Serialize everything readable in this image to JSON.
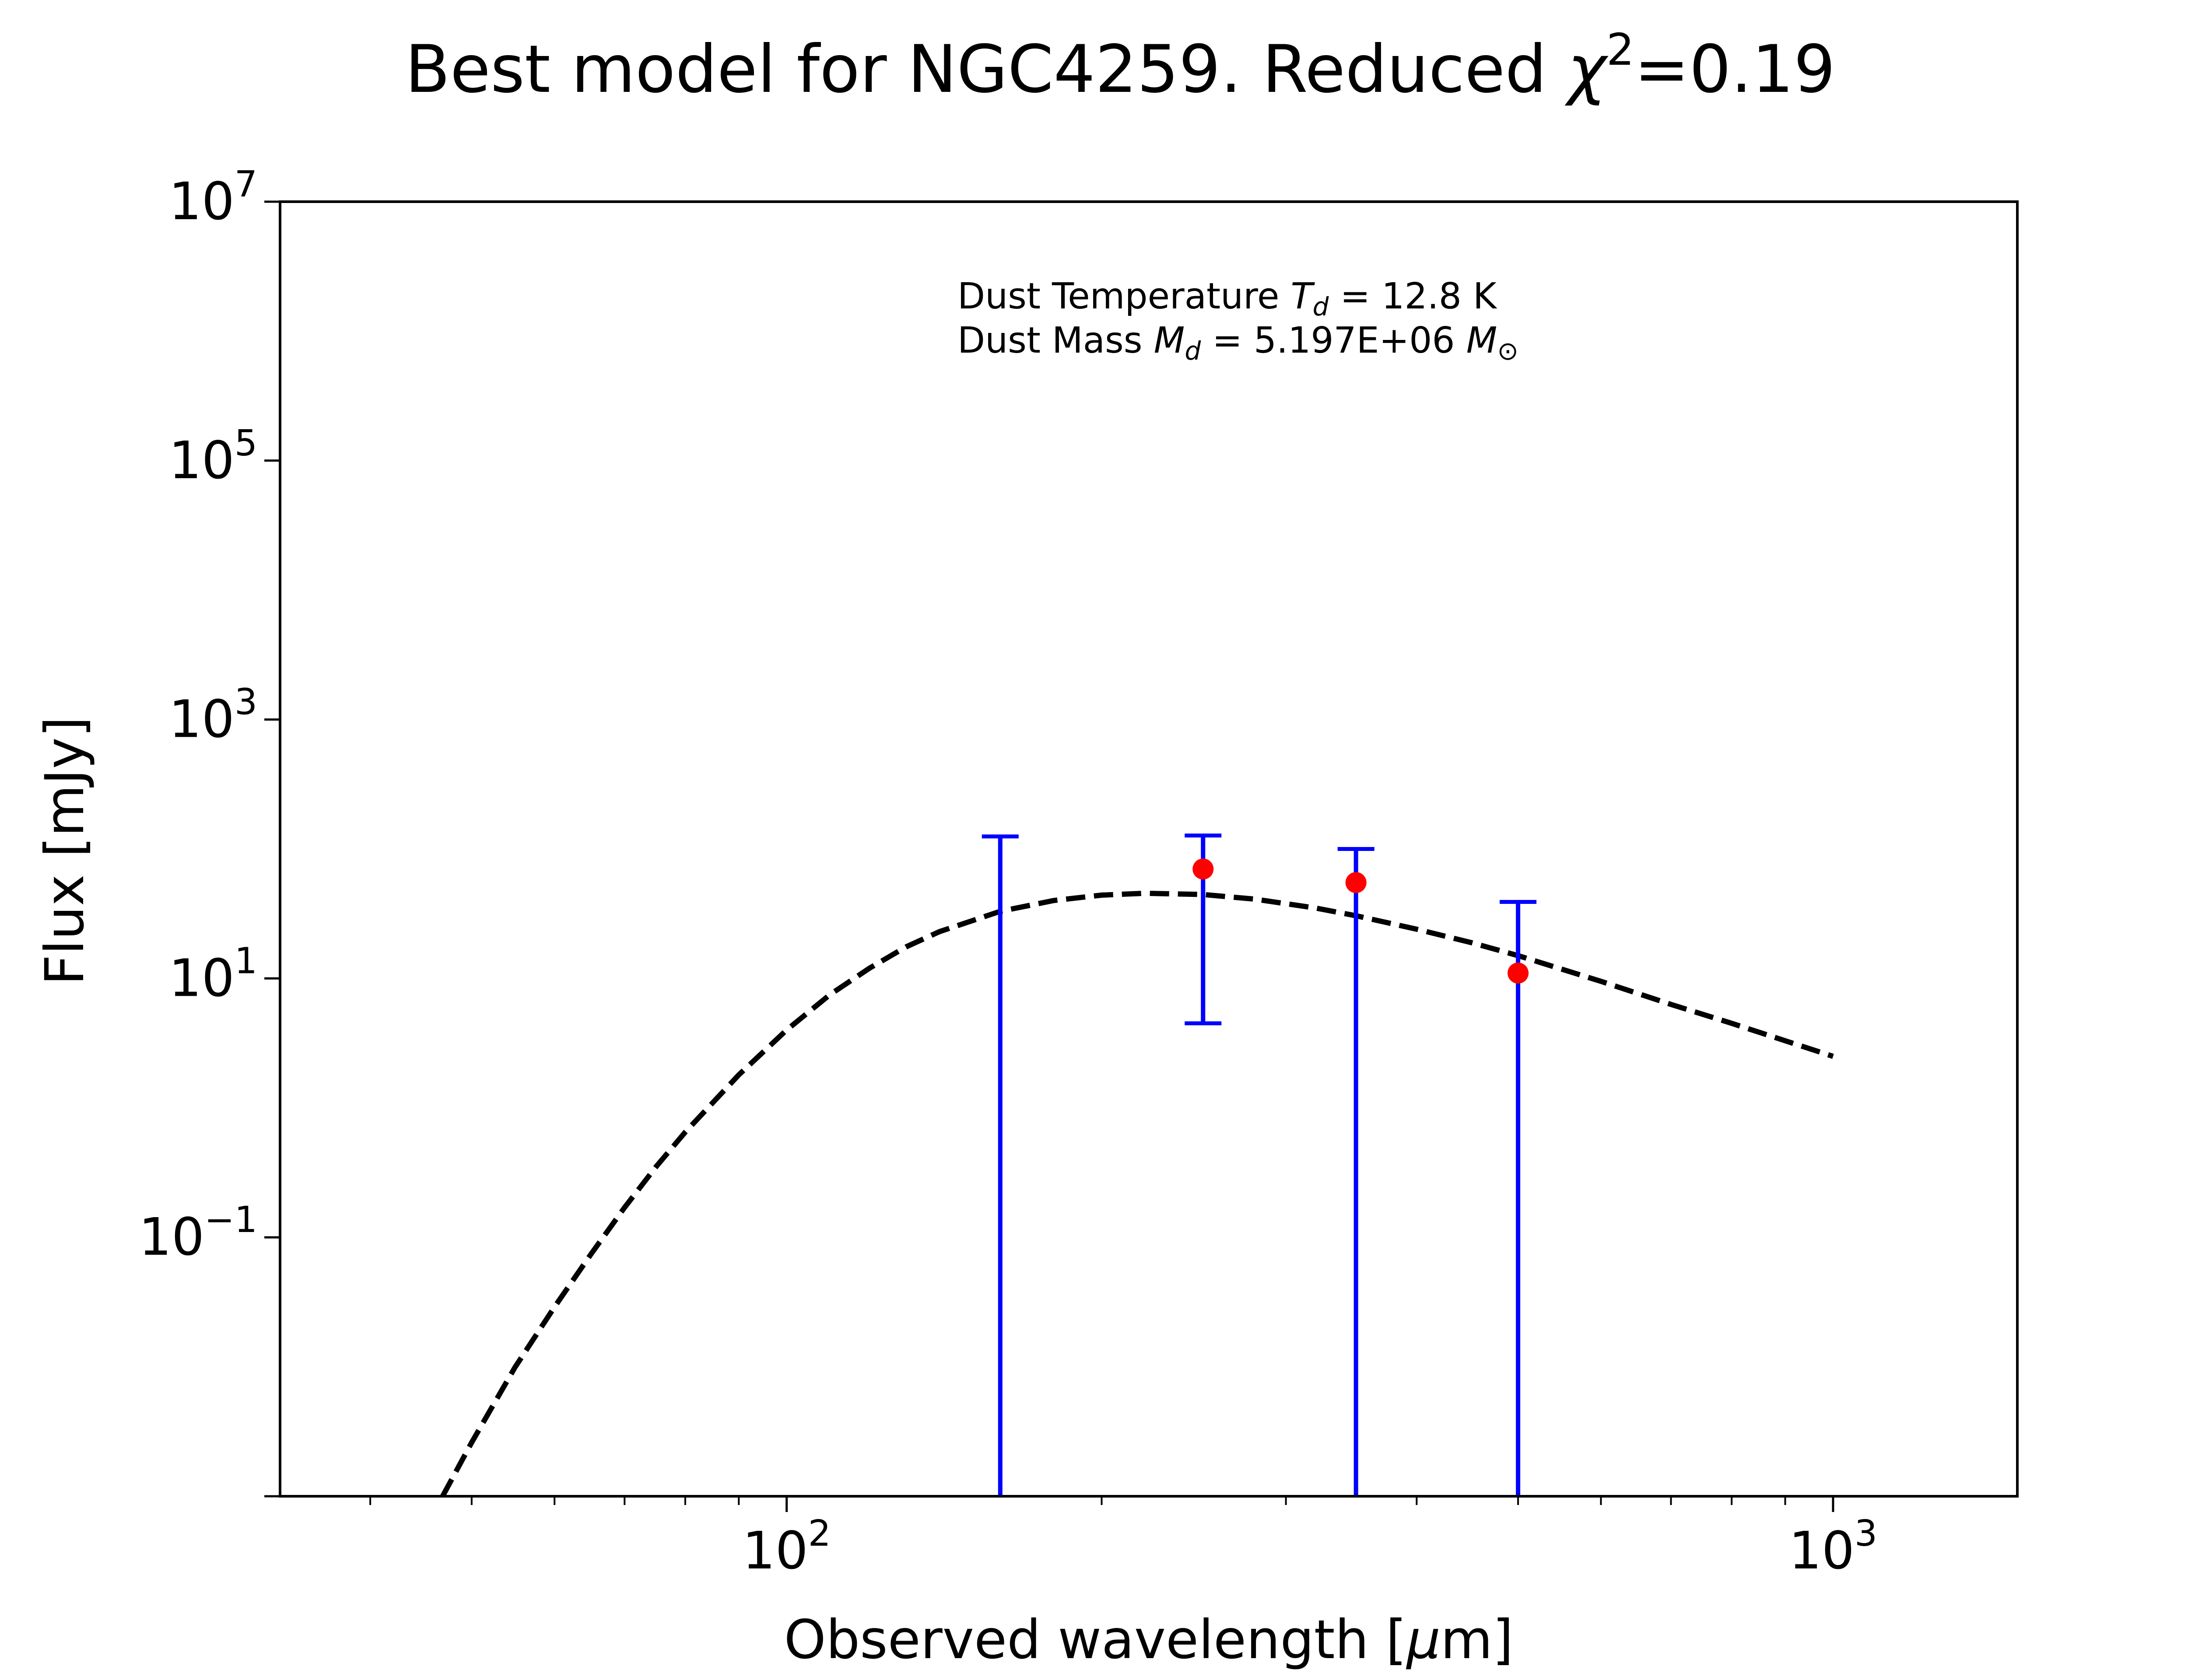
{
  "chart_data": {
    "type": "scatter",
    "title": {
      "prefix": "Best model for NGC4259. Reduced ",
      "chi_symbol": "χ",
      "chi_power": "2",
      "suffix": "=0.19"
    },
    "xlabel": {
      "prefix": "Observed wavelength [",
      "mu": "μ",
      "suffix": "m]"
    },
    "ylabel": "Flux [mJy]",
    "xscale": "log",
    "yscale": "log",
    "xlim": [
      32.8,
      1500
    ],
    "ylim": [
      0.001,
      10000000
    ],
    "grid": false,
    "legend": "none",
    "x_ticks": [
      {
        "value": 100,
        "base": "10",
        "exp": "2"
      },
      {
        "value": 1000,
        "base": "10",
        "exp": "3"
      }
    ],
    "y_ticks": [
      {
        "value": 0.1,
        "base": "10",
        "exp": "−1"
      },
      {
        "value": 10,
        "base": "10",
        "exp": "1"
      },
      {
        "value": 1000,
        "base": "10",
        "exp": "3"
      },
      {
        "value": 100000,
        "base": "10",
        "exp": "5"
      },
      {
        "value": 10000000,
        "base": "10",
        "exp": "7"
      }
    ],
    "annotation": {
      "line1": {
        "prefix": "Dust Temperature ",
        "var": "T",
        "sub": "d",
        "suffix": " = 12.8 K"
      },
      "line2": {
        "prefix": "Dust Mass ",
        "var": "M",
        "sub": "d",
        "middle": " = 5.197E+06 ",
        "var2": "M",
        "sub2": "⊙"
      }
    },
    "series": [
      {
        "style": "dashed-line",
        "color": "#000000",
        "x": [
          46.9,
          50,
          55,
          60,
          65,
          70,
          75,
          80,
          90,
          100,
          110,
          120,
          130,
          140,
          160,
          180,
          200,
          220,
          250,
          280,
          320,
          350,
          400,
          450,
          500,
          600,
          700,
          800,
          1000
        ],
        "y": [
          0.001,
          0.0026,
          0.0099,
          0.029,
          0.074,
          0.17,
          0.35,
          0.65,
          1.8,
          4.0,
          7.5,
          12,
          17.5,
          23,
          33,
          40,
          44,
          45.5,
          44.5,
          41,
          35,
          30.5,
          24,
          19,
          15,
          9.5,
          6.3,
          4.5,
          2.5
        ]
      },
      {
        "style": "errorbar",
        "color": "#0000ff",
        "points": [
          {
            "x": 160,
            "low": 0.001,
            "high": 125,
            "cap_low": false,
            "cap_high": true
          },
          {
            "x": 250,
            "low": 4.5,
            "high": 127,
            "cap_low": true,
            "cap_high": true
          },
          {
            "x": 350,
            "low": 0.001,
            "high": 100,
            "cap_low": false,
            "cap_high": true
          },
          {
            "x": 500,
            "low": 0.001,
            "high": 39,
            "cap_low": false,
            "cap_high": true
          }
        ]
      },
      {
        "style": "points",
        "color": "#ff0000",
        "x": [
          250,
          350,
          500
        ],
        "y": [
          70,
          55,
          11
        ]
      }
    ]
  }
}
